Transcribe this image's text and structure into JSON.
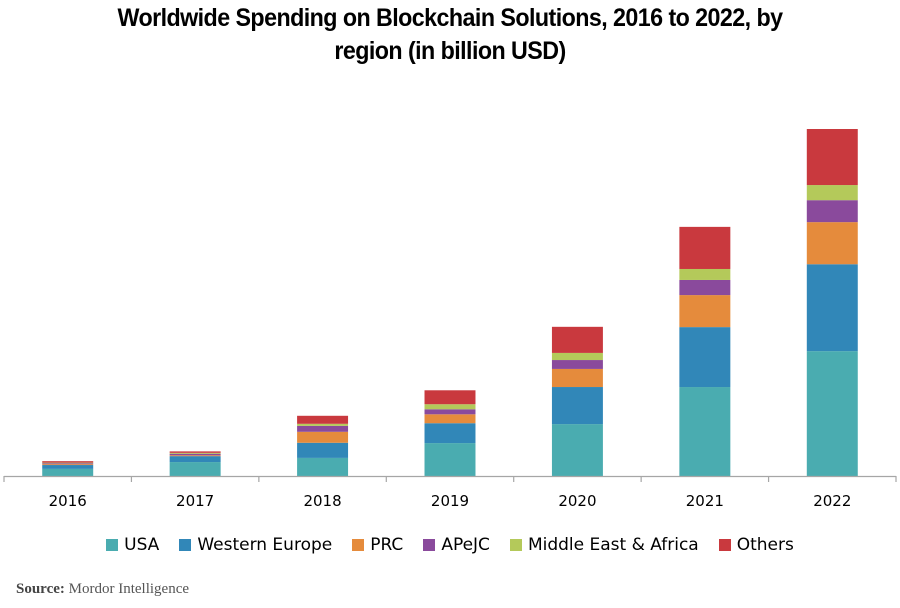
{
  "chart_data": {
    "type": "bar",
    "stacked": true,
    "title": "Worldwide Spending on Blockchain Solutions, 2016 to 2022, by region (in billion USD)",
    "title_lines": [
      "Worldwide Spending on Blockchain Solutions, 2016 to 2022, by",
      "region (in billion USD)"
    ],
    "xlabel": "",
    "ylabel": "",
    "y_axis_visible": false,
    "grid": false,
    "legend_position": "bottom",
    "ylim": [
      0,
      11.7
    ],
    "categories": [
      "2016",
      "2017",
      "2018",
      "2019",
      "2020",
      "2021",
      "2022"
    ],
    "series": [
      {
        "name": "USA",
        "color": "#4aacb0",
        "values": [
          0.24,
          0.47,
          0.61,
          1.11,
          1.75,
          3.0,
          4.21
        ]
      },
      {
        "name": "Western Europe",
        "color": "#3187b8",
        "values": [
          0.13,
          0.2,
          0.51,
          0.67,
          1.25,
          2.02,
          2.93
        ]
      },
      {
        "name": "PRC",
        "color": "#e58b3c",
        "values": [
          0.03,
          0.03,
          0.37,
          0.3,
          0.61,
          1.08,
          1.42
        ]
      },
      {
        "name": "APeJC",
        "color": "#8a4a9c",
        "values": [
          0.03,
          0.05,
          0.2,
          0.17,
          0.3,
          0.51,
          0.74
        ]
      },
      {
        "name": "Middle East & Africa",
        "color": "#b4c95a",
        "values": [
          0.02,
          0.03,
          0.07,
          0.17,
          0.24,
          0.37,
          0.51
        ]
      },
      {
        "name": "Others",
        "color": "#c9393e",
        "values": [
          0.05,
          0.05,
          0.27,
          0.47,
          0.88,
          1.42,
          1.89
        ]
      }
    ]
  },
  "source": {
    "label": "Source:",
    "value": "Mordor Intelligence"
  }
}
